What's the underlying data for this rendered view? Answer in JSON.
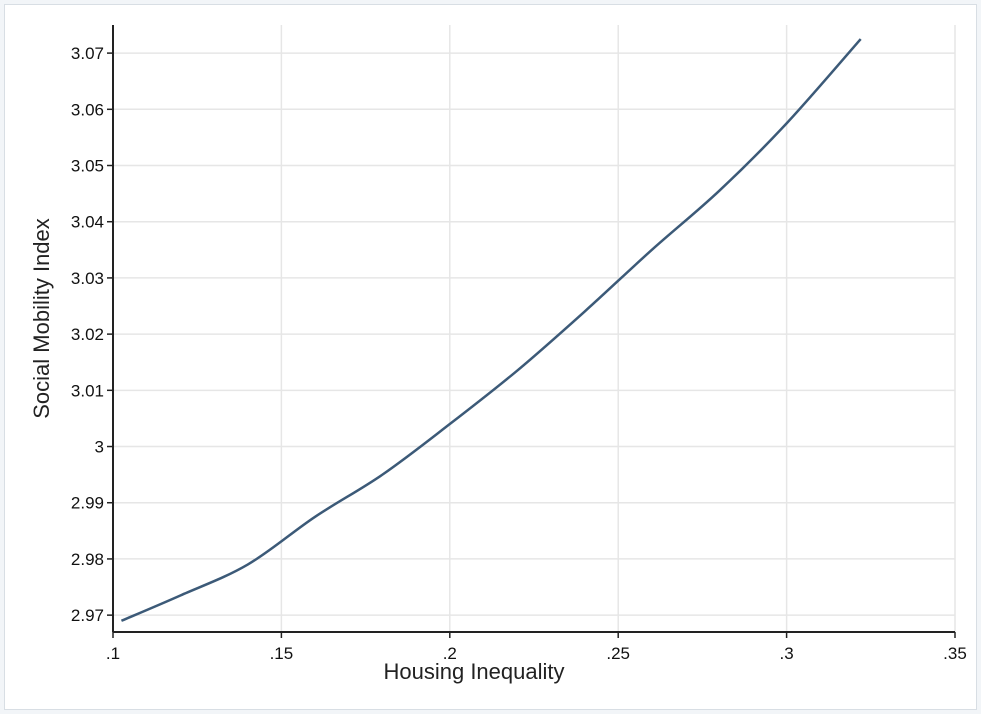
{
  "chart_data": {
    "type": "line",
    "title": "",
    "xlabel": "Housing Inequality",
    "ylabel": "Social Mobility Index",
    "xlim": [
      0.1,
      0.35
    ],
    "ylim": [
      2.967,
      3.075
    ],
    "xticks": [
      0.1,
      0.15,
      0.2,
      0.25,
      0.3,
      0.35
    ],
    "xtick_labels": [
      ".1",
      ".15",
      ".2",
      ".25",
      ".3",
      ".35"
    ],
    "yticks": [
      2.97,
      2.98,
      2.99,
      3.0,
      3.01,
      3.02,
      3.03,
      3.04,
      3.05,
      3.06,
      3.07
    ],
    "ytick_labels": [
      "2.97",
      "2.98",
      "2.99",
      "3",
      "3.01",
      "3.02",
      "3.03",
      "3.04",
      "3.05",
      "3.06",
      "3.07"
    ],
    "grid": true,
    "line_color": "#3c5a78",
    "grid_color": "#e6e6e6",
    "series": [
      {
        "x": [
          0.1025,
          0.12,
          0.14,
          0.16,
          0.18,
          0.2,
          0.22,
          0.24,
          0.26,
          0.28,
          0.3,
          0.322
        ],
        "y": [
          2.969,
          2.9735,
          2.979,
          2.9875,
          2.995,
          3.004,
          3.0135,
          3.024,
          3.035,
          3.0455,
          3.0575,
          3.0725
        ]
      }
    ]
  }
}
